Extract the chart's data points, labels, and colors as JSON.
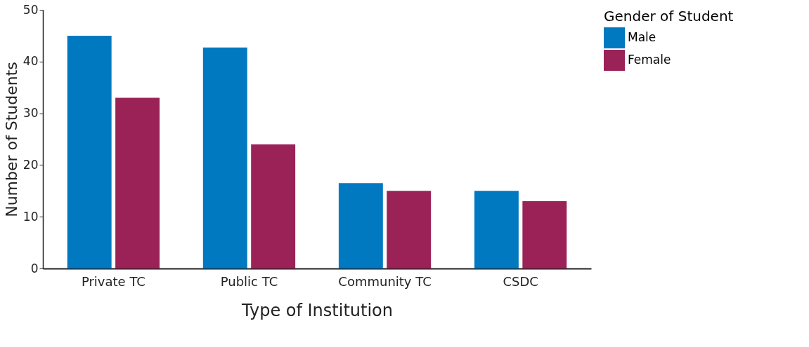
{
  "chart_data": {
    "type": "bar",
    "xlabel": "Type of Institution",
    "ylabel": "Number of Students",
    "legend_title": "Gender of Student",
    "categories": [
      "Private TC",
      "Public TC",
      "Community TC",
      "CSDC"
    ],
    "series": [
      {
        "name": "Male",
        "color": "#0079c1",
        "values": [
          45,
          42.7,
          16.5,
          15
        ]
      },
      {
        "name": "Female",
        "color": "#9b2257",
        "values": [
          33,
          24,
          15,
          13
        ]
      }
    ],
    "ylim": [
      0,
      50
    ],
    "yticks": [
      0,
      10,
      20,
      30,
      40,
      50
    ],
    "grid": false,
    "legend": "right"
  }
}
